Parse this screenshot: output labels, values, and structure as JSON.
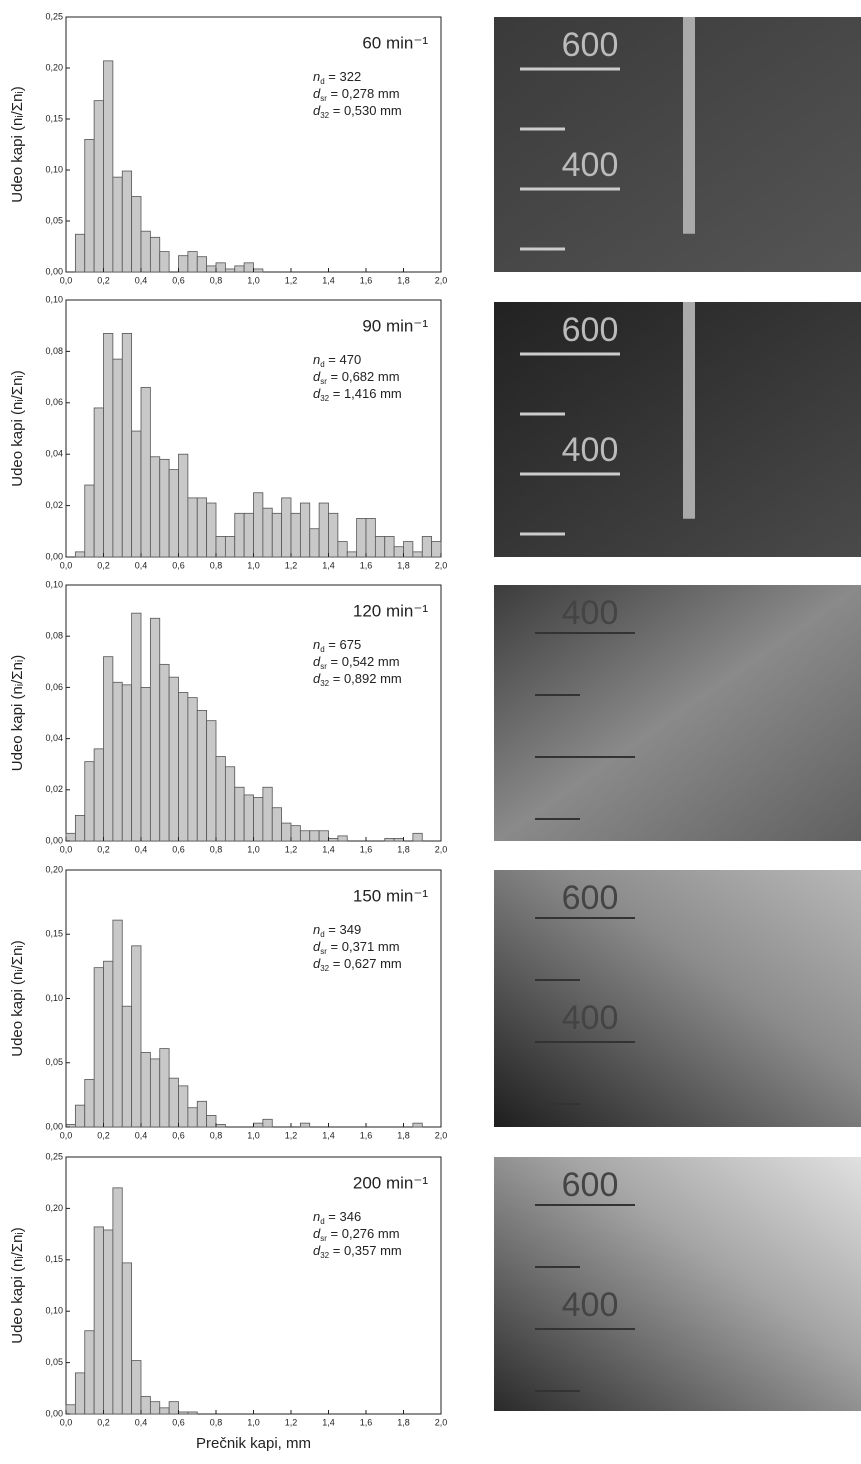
{
  "chart_data": [
    {
      "type": "histogram",
      "ylabel": "Udeo kapi (nᵢ/Σnᵢ)",
      "speed": "60 min⁻¹",
      "stats": [
        {
          "symbol": "n",
          "sub": "d",
          "text": " = 322"
        },
        {
          "symbol": "d",
          "sub": "sr",
          "text": " = 0,278 mm"
        },
        {
          "symbol": "d",
          "sub": "32",
          "text": " = 0,530 mm"
        }
      ],
      "bins": [
        0,
        0.05,
        0.1,
        0.15,
        0.2,
        0.25,
        0.3,
        0.35,
        0.4,
        0.45,
        0.5,
        0.55,
        0.6,
        0.65,
        0.7,
        0.75,
        0.8,
        0.85,
        0.9,
        0.95,
        1,
        1.05,
        1.1,
        1.15,
        1.2,
        1.25,
        1.3,
        1.35,
        1.4,
        1.45,
        1.5,
        1.55,
        1.6,
        1.65,
        1.7,
        1.75,
        1.8,
        1.85,
        1.9,
        1.95,
        2
      ],
      "values": [
        0,
        0.037,
        0.13,
        0.168,
        0.207,
        0.093,
        0.099,
        0.074,
        0.04,
        0.034,
        0.02,
        0,
        0.016,
        0.02,
        0.015,
        0.006,
        0.009,
        0.003,
        0.006,
        0.009,
        0.003,
        0,
        0,
        0,
        0,
        0,
        0,
        0,
        0,
        0,
        0,
        0,
        0,
        0,
        0,
        0,
        0,
        0,
        0,
        0
      ],
      "color": "#c8c8c8",
      "xlim": [
        0,
        2
      ],
      "xticks": [
        {
          "value": 0,
          "label": "0,0"
        },
        {
          "value": 0.2,
          "label": "0,2"
        },
        {
          "value": 0.4,
          "label": "0,4"
        },
        {
          "value": 0.6,
          "label": "0,6"
        },
        {
          "value": 0.8,
          "label": "0,8"
        },
        {
          "value": 1,
          "label": "1,0"
        },
        {
          "value": 1.2,
          "label": "1,2"
        },
        {
          "value": 1.4,
          "label": "1,4"
        },
        {
          "value": 1.6,
          "label": "1,6"
        },
        {
          "value": 1.8,
          "label": "1,8"
        },
        {
          "value": 2,
          "label": "2,0"
        }
      ],
      "ylim": [
        0,
        0.25
      ],
      "yticks": [
        {
          "value": 0,
          "label": "0,00"
        },
        {
          "value": 0.05,
          "label": "0,05"
        },
        {
          "value": 0.1,
          "label": "0,10"
        },
        {
          "value": 0.15,
          "label": "0,15"
        },
        {
          "value": 0.2,
          "label": "0,20"
        },
        {
          "value": 0.25,
          "label": "0,25"
        }
      ]
    },
    {
      "type": "histogram",
      "ylabel": "Udeo kapi (nᵢ/Σnᵢ)",
      "speed": "90 min⁻¹",
      "stats": [
        {
          "symbol": "n",
          "sub": "d",
          "text": " = 470"
        },
        {
          "symbol": "d",
          "sub": "sr",
          "text": " = 0,682 mm"
        },
        {
          "symbol": "d",
          "sub": "32",
          "text": " = 1,416 mm"
        }
      ],
      "bins": [
        0,
        0.05,
        0.1,
        0.15,
        0.2,
        0.25,
        0.3,
        0.35,
        0.4,
        0.45,
        0.5,
        0.55,
        0.6,
        0.65,
        0.7,
        0.75,
        0.8,
        0.85,
        0.9,
        0.95,
        1,
        1.05,
        1.1,
        1.15,
        1.2,
        1.25,
        1.3,
        1.35,
        1.4,
        1.45,
        1.5,
        1.55,
        1.6,
        1.65,
        1.7,
        1.75,
        1.8,
        1.85,
        1.9,
        1.95,
        2
      ],
      "values": [
        0,
        0.002,
        0.028,
        0.058,
        0.087,
        0.077,
        0.087,
        0.049,
        0.066,
        0.039,
        0.038,
        0.034,
        0.04,
        0.023,
        0.023,
        0.021,
        0.008,
        0.008,
        0.017,
        0.017,
        0.025,
        0.019,
        0.017,
        0.023,
        0.017,
        0.021,
        0.011,
        0.021,
        0.017,
        0.006,
        0.002,
        0.015,
        0.015,
        0.008,
        0.008,
        0.004,
        0.006,
        0.002,
        0.008,
        0.006
      ],
      "color": "#c8c8c8",
      "xlim": [
        0,
        2
      ],
      "xticks": [
        {
          "value": 0,
          "label": "0,0"
        },
        {
          "value": 0.2,
          "label": "0,2"
        },
        {
          "value": 0.4,
          "label": "0,4"
        },
        {
          "value": 0.6,
          "label": "0,6"
        },
        {
          "value": 0.8,
          "label": "0,8"
        },
        {
          "value": 1,
          "label": "1,0"
        },
        {
          "value": 1.2,
          "label": "1,2"
        },
        {
          "value": 1.4,
          "label": "1,4"
        },
        {
          "value": 1.6,
          "label": "1,6"
        },
        {
          "value": 1.8,
          "label": "1,8"
        },
        {
          "value": 2,
          "label": "2,0"
        }
      ],
      "ylim": [
        0,
        0.1
      ],
      "yticks": [
        {
          "value": 0,
          "label": "0,00"
        },
        {
          "value": 0.02,
          "label": "0,02"
        },
        {
          "value": 0.04,
          "label": "0,04"
        },
        {
          "value": 0.06,
          "label": "0,06"
        },
        {
          "value": 0.08,
          "label": "0,08"
        },
        {
          "value": 0.1,
          "label": "0,10"
        }
      ]
    },
    {
      "type": "histogram",
      "ylabel": "Udeo kapi (nᵢ/Σnᵢ)",
      "speed": "120 min⁻¹",
      "stats": [
        {
          "symbol": "n",
          "sub": "d",
          "text": " = 675"
        },
        {
          "symbol": "d",
          "sub": "sr",
          "text": " = 0,542 mm"
        },
        {
          "symbol": "d",
          "sub": "32",
          "text": " = 0,892 mm"
        }
      ],
      "bins": [
        0,
        0.05,
        0.1,
        0.15,
        0.2,
        0.25,
        0.3,
        0.35,
        0.4,
        0.45,
        0.5,
        0.55,
        0.6,
        0.65,
        0.7,
        0.75,
        0.8,
        0.85,
        0.9,
        0.95,
        1,
        1.05,
        1.1,
        1.15,
        1.2,
        1.25,
        1.3,
        1.35,
        1.4,
        1.45,
        1.5,
        1.55,
        1.6,
        1.65,
        1.7,
        1.75,
        1.8,
        1.85,
        1.9,
        1.95,
        2
      ],
      "values": [
        0.003,
        0.01,
        0.031,
        0.036,
        0.072,
        0.062,
        0.061,
        0.089,
        0.06,
        0.087,
        0.069,
        0.064,
        0.058,
        0.056,
        0.051,
        0.047,
        0.033,
        0.029,
        0.021,
        0.018,
        0.017,
        0.021,
        0.013,
        0.007,
        0.006,
        0.004,
        0.004,
        0.004,
        0.001,
        0.002,
        0,
        0,
        0,
        0,
        0.001,
        0.001,
        0,
        0.003,
        0,
        0
      ],
      "color": "#c8c8c8",
      "xlim": [
        0,
        2
      ],
      "xticks": [
        {
          "value": 0,
          "label": "0,0"
        },
        {
          "value": 0.2,
          "label": "0,2"
        },
        {
          "value": 0.4,
          "label": "0,4"
        },
        {
          "value": 0.6,
          "label": "0,6"
        },
        {
          "value": 0.8,
          "label": "0,8"
        },
        {
          "value": 1,
          "label": "1,0"
        },
        {
          "value": 1.2,
          "label": "1,2"
        },
        {
          "value": 1.4,
          "label": "1,4"
        },
        {
          "value": 1.6,
          "label": "1,6"
        },
        {
          "value": 1.8,
          "label": "1,8"
        },
        {
          "value": 2,
          "label": "2,0"
        }
      ],
      "ylim": [
        0,
        0.1
      ],
      "yticks": [
        {
          "value": 0,
          "label": "0,00"
        },
        {
          "value": 0.02,
          "label": "0,02"
        },
        {
          "value": 0.04,
          "label": "0,04"
        },
        {
          "value": 0.06,
          "label": "0,06"
        },
        {
          "value": 0.08,
          "label": "0,08"
        },
        {
          "value": 0.1,
          "label": "0,10"
        }
      ]
    },
    {
      "type": "histogram",
      "ylabel": "Udeo kapi (nᵢ/Σnᵢ)",
      "speed": "150 min⁻¹",
      "stats": [
        {
          "symbol": "n",
          "sub": "d",
          "text": " = 349"
        },
        {
          "symbol": "d",
          "sub": "sr",
          "text": " = 0,371 mm"
        },
        {
          "symbol": "d",
          "sub": "32",
          "text": " = 0,627 mm"
        }
      ],
      "bins": [
        0,
        0.05,
        0.1,
        0.15,
        0.2,
        0.25,
        0.3,
        0.35,
        0.4,
        0.45,
        0.5,
        0.55,
        0.6,
        0.65,
        0.7,
        0.75,
        0.8,
        0.85,
        0.9,
        0.95,
        1,
        1.05,
        1.1,
        1.15,
        1.2,
        1.25,
        1.3,
        1.35,
        1.4,
        1.45,
        1.5,
        1.55,
        1.6,
        1.65,
        1.7,
        1.75,
        1.8,
        1.85,
        1.9,
        1.95,
        2
      ],
      "values": [
        0.002,
        0.017,
        0.037,
        0.124,
        0.129,
        0.161,
        0.094,
        0.141,
        0.058,
        0.053,
        0.061,
        0.038,
        0.032,
        0.015,
        0.02,
        0.009,
        0.002,
        0,
        0,
        0,
        0.003,
        0.006,
        0,
        0,
        0,
        0.003,
        0,
        0,
        0,
        0,
        0,
        0,
        0,
        0,
        0,
        0,
        0,
        0.003,
        0,
        0
      ],
      "color": "#c8c8c8",
      "xlim": [
        0,
        2
      ],
      "xticks": [
        {
          "value": 0,
          "label": "0,0"
        },
        {
          "value": 0.2,
          "label": "0,2"
        },
        {
          "value": 0.4,
          "label": "0,4"
        },
        {
          "value": 0.6,
          "label": "0,6"
        },
        {
          "value": 0.8,
          "label": "0,8"
        },
        {
          "value": 1,
          "label": "1,0"
        },
        {
          "value": 1.2,
          "label": "1,2"
        },
        {
          "value": 1.4,
          "label": "1,4"
        },
        {
          "value": 1.6,
          "label": "1,6"
        },
        {
          "value": 1.8,
          "label": "1,8"
        },
        {
          "value": 2,
          "label": "2,0"
        }
      ],
      "ylim": [
        0,
        0.2
      ],
      "yticks": [
        {
          "value": 0,
          "label": "0,00"
        },
        {
          "value": 0.05,
          "label": "0,05"
        },
        {
          "value": 0.1,
          "label": "0,10"
        },
        {
          "value": 0.15,
          "label": "0,15"
        },
        {
          "value": 0.2,
          "label": "0,20"
        }
      ]
    },
    {
      "type": "histogram",
      "ylabel": "Udeo kapi (nᵢ/Σnᵢ)",
      "speed": "200 min⁻¹",
      "xlabel": "Prečnik kapi, mm",
      "stats": [
        {
          "symbol": "n",
          "sub": "d",
          "text": " = 346"
        },
        {
          "symbol": "d",
          "sub": "sr",
          "text": " = 0,276 mm"
        },
        {
          "symbol": "d",
          "sub": "32",
          "text": " = 0,357 mm"
        }
      ],
      "bins": [
        0,
        0.05,
        0.1,
        0.15,
        0.2,
        0.25,
        0.3,
        0.35,
        0.4,
        0.45,
        0.5,
        0.55,
        0.6,
        0.65,
        0.7,
        0.75,
        0.8,
        0.85,
        0.9,
        0.95,
        1,
        1.05,
        1.1,
        1.15,
        1.2,
        1.25,
        1.3,
        1.35,
        1.4,
        1.45,
        1.5,
        1.55,
        1.6,
        1.65,
        1.7,
        1.75,
        1.8,
        1.85,
        1.9,
        1.95,
        2
      ],
      "values": [
        0.009,
        0.04,
        0.081,
        0.182,
        0.179,
        0.22,
        0.147,
        0.052,
        0.017,
        0.012,
        0.006,
        0.012,
        0.002,
        0.002,
        0,
        0,
        0,
        0,
        0,
        0,
        0,
        0,
        0,
        0,
        0,
        0,
        0,
        0,
        0,
        0,
        0,
        0,
        0,
        0,
        0,
        0,
        0,
        0,
        0,
        0
      ],
      "color": "#c8c8c8",
      "xlim": [
        0,
        2
      ],
      "xticks": [
        {
          "value": 0,
          "label": "0,0"
        },
        {
          "value": 0.2,
          "label": "0,2"
        },
        {
          "value": 0.4,
          "label": "0,4"
        },
        {
          "value": 0.6,
          "label": "0,6"
        },
        {
          "value": 0.8,
          "label": "0,8"
        },
        {
          "value": 1,
          "label": "1,0"
        },
        {
          "value": 1.2,
          "label": "1,2"
        },
        {
          "value": 1.4,
          "label": "1,4"
        },
        {
          "value": 1.6,
          "label": "1,6"
        },
        {
          "value": 1.8,
          "label": "1,8"
        },
        {
          "value": 2,
          "label": "2,0"
        }
      ],
      "ylim": [
        0,
        0.25
      ],
      "yticks": [
        {
          "value": 0,
          "label": "0,00"
        },
        {
          "value": 0.05,
          "label": "0,05"
        },
        {
          "value": 0.1,
          "label": "0,10"
        },
        {
          "value": 0.15,
          "label": "0,15"
        },
        {
          "value": 0.2,
          "label": "0,20"
        },
        {
          "value": 0.25,
          "label": "0,25"
        }
      ]
    }
  ],
  "photos": [
    {
      "labels": [
        "600",
        "400"
      ]
    },
    {
      "labels": [
        "600",
        "400"
      ]
    },
    {
      "labels": [
        "400"
      ]
    },
    {
      "labels": [
        "600",
        "400"
      ]
    },
    {
      "labels": [
        "600",
        "400"
      ]
    }
  ]
}
